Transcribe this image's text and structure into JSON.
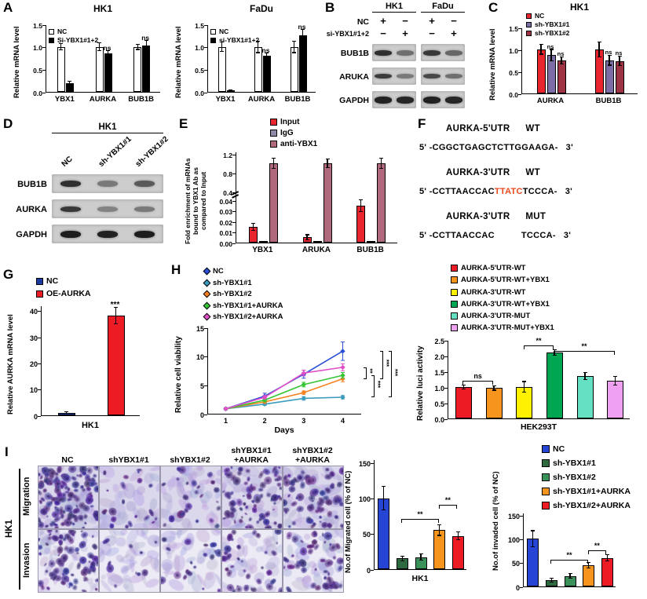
{
  "panel_labels": {
    "A": "A",
    "B": "B",
    "C": "C",
    "D": "D",
    "E": "E",
    "F": "F",
    "G": "G",
    "H": "H",
    "I": "I"
  },
  "charts": {
    "a1": {
      "type": "bar",
      "title": "HK1",
      "ylabel": "Relative mRNA level",
      "ylim": [
        0,
        1.5
      ],
      "yticks": [
        "0.0",
        "0.5",
        "1.0",
        "1.5"
      ],
      "ytick_vals": [
        0,
        0.5,
        1.0,
        1.5
      ],
      "categories": [
        "YBX1",
        "AURKA",
        "BUB1B"
      ],
      "series": [
        {
          "name": "NC",
          "color": "#ffffff",
          "values": [
            1.0,
            1.0,
            1.0
          ],
          "errors": [
            0.06,
            0.08,
            0.05
          ]
        },
        {
          "name": "Si-YBX1#1+2",
          "color": "#000000",
          "values": [
            0.2,
            0.85,
            1.03
          ],
          "errors": [
            0.02,
            0.06,
            0.1
          ]
        }
      ],
      "point_labels": [
        {
          "s": 1,
          "c": 1,
          "text": "ns"
        },
        {
          "s": 1,
          "c": 2,
          "text": "ns"
        }
      ]
    },
    "a2": {
      "type": "bar",
      "title": "FaDu",
      "ylabel": "Relative mRNA level",
      "ylim": [
        0,
        1.5
      ],
      "yticks": [
        "0.0",
        "0.5",
        "1.0",
        "1.5"
      ],
      "ytick_vals": [
        0,
        0.5,
        1.0,
        1.5
      ],
      "categories": [
        "YBX1",
        "AURKA",
        "BUB1B"
      ],
      "series": [
        {
          "name": "NC",
          "color": "#ffffff",
          "values": [
            1.0,
            1.0,
            1.0
          ],
          "errors": [
            0.1,
            0.12,
            0.12
          ]
        },
        {
          "name": "si-YBX1#1+2",
          "color": "#000000",
          "values": [
            0.03,
            0.8,
            1.25
          ],
          "errors": [
            0.01,
            0.05,
            0.12
          ]
        }
      ],
      "point_labels": [
        {
          "s": 1,
          "c": 1,
          "text": "ns"
        },
        {
          "s": 1,
          "c": 2,
          "text": "ns"
        }
      ]
    },
    "c": {
      "type": "bar",
      "title": "HK1",
      "ylabel": "Relative mRNA level",
      "ylim": [
        0,
        1.5
      ],
      "yticks": [
        "0.0",
        "0.5",
        "1.0",
        "1.5"
      ],
      "ytick_vals": [
        0,
        0.5,
        1.0,
        1.5
      ],
      "categories": [
        "AURKA",
        "BUB1B"
      ],
      "series": [
        {
          "name": "NC",
          "color": "#e8242c",
          "values": [
            1.0,
            1.0
          ],
          "errors": [
            0.1,
            0.16
          ]
        },
        {
          "name": "sh-YBX1#1",
          "color": "#7d6da6",
          "values": [
            0.87,
            0.75
          ],
          "errors": [
            0.12,
            0.1
          ]
        },
        {
          "name": "sh-YBX1#2",
          "color": "#9e3344",
          "values": [
            0.75,
            0.74
          ],
          "errors": [
            0.07,
            0.1
          ]
        }
      ],
      "point_labels": [
        {
          "s": 1,
          "c": 0,
          "text": "ns"
        },
        {
          "s": 2,
          "c": 0,
          "text": "ns"
        },
        {
          "s": 1,
          "c": 1,
          "text": "ns"
        },
        {
          "s": 2,
          "c": 1,
          "text": "ns"
        }
      ]
    },
    "e": {
      "type": "bar",
      "scale": "broken",
      "segments": [
        {
          "domain": [
            0,
            0.045
          ],
          "range": [
            0,
            0.52
          ]
        },
        {
          "domain": [
            0.4,
            1.25
          ],
          "range": [
            0.56,
            1.0
          ]
        }
      ],
      "ylabel": "Fold enrichment of mRNAs\nbound to YBX1 Ab as\ncompared to Input",
      "yticks": [
        "0.00",
        "0.01",
        "0.02",
        "0.03",
        "0.04",
        "0.4",
        "0.8",
        "1.2"
      ],
      "ytick_vals": [
        0,
        0.01,
        0.02,
        0.03,
        0.04,
        0.4,
        0.8,
        1.2
      ],
      "categories": [
        "YBX1",
        "ARUKA",
        "BUB1B"
      ],
      "series": [
        {
          "name": "Input",
          "color": "#e8242c",
          "values": [
            0.015,
            0.005,
            0.035
          ],
          "errors": [
            0.003,
            0.002,
            0.005
          ]
        },
        {
          "name": "IgG",
          "color": "#8f8aa8",
          "values": [
            0.0012,
            0.001,
            0.0012
          ],
          "errors": [
            0,
            0,
            0
          ]
        },
        {
          "name": "anti-YBX1",
          "color": "#b0687c",
          "values": [
            1.0,
            1.0,
            1.0
          ],
          "errors": [
            0.1,
            0.08,
            0.1
          ]
        }
      ]
    },
    "g": {
      "type": "bar",
      "ylabel": "Relative AURKA mRNA level",
      "xlabel": "HK1",
      "ylim": [
        0,
        42
      ],
      "yticks": [
        "0",
        "10",
        "20",
        "30",
        "40"
      ],
      "ytick_vals": [
        0,
        10,
        20,
        30,
        40
      ],
      "bars": [
        {
          "label": "NC",
          "value": 1,
          "error": 0.15,
          "color": "#1b3a9e"
        },
        {
          "label": "OE-AURKA",
          "value": 38,
          "error": 3,
          "color": "#ed1c24"
        }
      ],
      "legend": [
        {
          "label": "NC",
          "color": "#1b3a9e"
        },
        {
          "label": "OE-AURKA",
          "color": "#ed1c24"
        }
      ],
      "point_labels": [
        {
          "i": 1,
          "text": "***"
        }
      ]
    },
    "h": {
      "type": "line",
      "ylabel": "Relative cell viability",
      "xlabel": "Days",
      "ylim": [
        0,
        15
      ],
      "yticks": [
        "0",
        "5",
        "10",
        "15"
      ],
      "ytick_vals": [
        0,
        5,
        10,
        15
      ],
      "x": [
        "1",
        "2",
        "3",
        "4"
      ],
      "series": [
        {
          "name": "NC",
          "color": "#2a4fd6",
          "values": [
            1,
            3.2,
            7,
            11
          ],
          "errors": [
            0.2,
            0.5,
            0.7,
            1.6
          ]
        },
        {
          "name": "sh-YBX1#1",
          "color": "#3a9bbc",
          "values": [
            1,
            1.8,
            2.8,
            3.0
          ],
          "errors": [
            0.1,
            0.2,
            0.3,
            0.3
          ]
        },
        {
          "name": "sh-YBX1#2",
          "color": "#f5821f",
          "values": [
            1,
            2.2,
            3.8,
            6.2
          ],
          "errors": [
            0.1,
            0.2,
            0.3,
            0.5
          ]
        },
        {
          "name": "sh-YBX1#1+AURKA",
          "color": "#35c435",
          "values": [
            1,
            2.5,
            5.2,
            6.8
          ],
          "errors": [
            0.1,
            0.3,
            0.4,
            0.5
          ]
        },
        {
          "name": "sh-YBX1#2+AURKA",
          "color": "#e050c8",
          "values": [
            1,
            3.0,
            7.2,
            8.2
          ],
          "errors": [
            0.1,
            0.3,
            0.5,
            0.6
          ]
        }
      ],
      "brackets": [
        {
          "v1": 6.2,
          "v2": 8.2,
          "label": "**",
          "dx": 7
        },
        {
          "v1": 3.0,
          "v2": 6.8,
          "label": "***",
          "dx": 17
        },
        {
          "v1": 6.2,
          "v2": 11,
          "label": "***",
          "dx": 28
        },
        {
          "v1": 3.0,
          "v2": 11,
          "label": "***",
          "dx": 39
        }
      ]
    },
    "luc": {
      "type": "bar",
      "ylabel": "Relative luci activity",
      "xlabel": "HEK293T",
      "ylim": [
        0,
        2.5
      ],
      "yticks": [
        "0.0",
        "0.5",
        "1.0",
        "1.5",
        "2.0",
        "2.5"
      ],
      "ytick_vals": [
        0,
        0.5,
        1.0,
        1.5,
        2.0,
        2.5
      ],
      "bars": [
        {
          "label": "AURKA-5'UTR-WT",
          "value": 1.0,
          "error": 0.05,
          "color": "#ed1c24"
        },
        {
          "label": "AURKA-5'UTR-WT+YBX1",
          "value": 0.97,
          "error": 0.06,
          "color": "#f7941d"
        },
        {
          "label": "AURKA-3'UTR-WT",
          "value": 1.0,
          "error": 0.16,
          "color": "#fff200"
        },
        {
          "label": "AURKA-3'UTR-WT+YBX1",
          "value": 2.1,
          "error": 0.07,
          "color": "#00a651"
        },
        {
          "label": "AURKA-3'UTR-MUT",
          "value": 1.35,
          "error": 0.1,
          "color": "#66e0c2"
        },
        {
          "label": "AURKA-3'UTR-MUT+YBX1",
          "value": 1.2,
          "error": 0.13,
          "color": "#f0a0f0"
        }
      ],
      "legend": [
        {
          "label": "AURKA-5'UTR-WT",
          "color": "#ed1c24"
        },
        {
          "label": "AURKA-5'UTR-WT+YBX1",
          "color": "#f7941d"
        },
        {
          "label": "AURKA-3'UTR-WT",
          "color": "#fff200"
        },
        {
          "label": "AURKA-3'UTR-WT+YBX1",
          "color": "#00a651"
        },
        {
          "label": "AURKA-3'UTR-MUT",
          "color": "#66e0c2"
        },
        {
          "label": "AURKA-3'UTR-MUT+YBX1",
          "color": "#f0a0f0"
        }
      ],
      "brackets": [
        {
          "i": 0,
          "j": 1,
          "label": "ns",
          "v": 1.22
        },
        {
          "i": 2,
          "j": 3,
          "label": "**",
          "v": 2.36
        },
        {
          "i": 3,
          "j": 5,
          "label": "**",
          "v": 2.18
        }
      ]
    },
    "migrated": {
      "type": "bar",
      "ylabel": "No.of Migrated cell (% of NC)",
      "xlabel": "HK1",
      "ylim": [
        0,
        155
      ],
      "yticks": [
        "0",
        "50",
        "100",
        "150"
      ],
      "ytick_vals": [
        0,
        50,
        100,
        150
      ],
      "bars": [
        {
          "label": "NC",
          "value": 100,
          "error": 16,
          "color": "#2645d4"
        },
        {
          "label": "sh-YBX1#1",
          "value": 15,
          "error": 3,
          "color": "#2d6a3f"
        },
        {
          "label": "sh-YBX1#2",
          "value": 17,
          "error": 4,
          "color": "#3a915a"
        },
        {
          "label": "sh-YBX1#1+AURKA",
          "value": 55,
          "error": 7,
          "color": "#f7941d"
        },
        {
          "label": "sh-YBX1#2+AURKA",
          "value": 47,
          "error": 5,
          "color": "#ed1c24"
        }
      ],
      "brackets": [
        {
          "i": 1,
          "j": 3,
          "label": "**",
          "v": 72
        },
        {
          "i": 3,
          "j": 4,
          "label": "**",
          "v": 92
        }
      ]
    },
    "invaded": {
      "type": "bar",
      "ylabel": "No.of invaded cell (% of NC)",
      "ylim": [
        0,
        155
      ],
      "yticks": [
        "0",
        "50",
        "100",
        "150"
      ],
      "ytick_vals": [
        0,
        50,
        100,
        150
      ],
      "bars": [
        {
          "label": "NC",
          "value": 100,
          "error": 16,
          "color": "#2645d4"
        },
        {
          "label": "sh-YBX1#1",
          "value": 13,
          "error": 3,
          "color": "#2d6a3f"
        },
        {
          "label": "sh-YBX1#2",
          "value": 22,
          "error": 4,
          "color": "#3a915a"
        },
        {
          "label": "sh-YBX1#1+AURKA",
          "value": 44,
          "error": 5,
          "color": "#f7941d"
        },
        {
          "label": "sh-YBX1#2+AURKA",
          "value": 60,
          "error": 6,
          "color": "#ed1c24"
        }
      ],
      "brackets": [
        {
          "i": 1,
          "j": 3,
          "label": "**",
          "v": 58
        },
        {
          "i": 3,
          "j": 4,
          "label": "**",
          "v": 78
        }
      ]
    }
  },
  "panelB": {
    "groups": [
      "HK1",
      "FaDu"
    ],
    "condition_rows": [
      {
        "label": "NC",
        "signs": [
          "+",
          "−",
          "+",
          "−"
        ]
      },
      {
        "label": "si-YBX1#1+2",
        "signs": [
          "−",
          "+",
          "−",
          "+"
        ]
      }
    ],
    "blots": [
      {
        "label": "BUB1B",
        "lanes": [
          0.85,
          0.5,
          0.8,
          0.55
        ]
      },
      {
        "label": "ARUKA",
        "lanes": [
          0.78,
          0.45,
          0.72,
          0.5
        ]
      },
      {
        "label": "GAPDH",
        "lanes": [
          0.92,
          0.9,
          0.92,
          0.9
        ]
      }
    ]
  },
  "panelD": {
    "title": "HK1",
    "lanes": [
      "NC",
      "sh-YBX1#1",
      "sh-YBX1#2"
    ],
    "blots": [
      {
        "label": "BUB1B",
        "lanes": [
          0.85,
          0.45,
          0.62
        ]
      },
      {
        "label": "AURKA",
        "lanes": [
          0.8,
          0.4,
          0.45
        ]
      },
      {
        "label": "GAPDH",
        "lanes": [
          0.95,
          0.93,
          0.95
        ]
      }
    ]
  },
  "panelF": {
    "prime5": "5'",
    "prime3": "3'",
    "dash": "-",
    "highlight_color": "#e8491d",
    "blocks": [
      {
        "name": "AURKA-5'UTR",
        "variant": "WT",
        "pre": "CGGCTGAGCTCTTGGAAGA",
        "highlight": "",
        "post": "",
        "gap": false
      },
      {
        "name": "AURKA-3'UTR",
        "variant": "WT",
        "pre": "CCTTAACCAC",
        "highlight": "TTATC",
        "post": "TCCCA",
        "gap": false
      },
      {
        "name": "AURKA-3'UTR",
        "variant": "MUT",
        "pre": "CCTTAACCAC",
        "highlight": "",
        "post": "TCCCA",
        "gap": true
      }
    ]
  },
  "panelI": {
    "col_headers": [
      [
        "NC",
        ""
      ],
      [
        "shYBX1#1",
        ""
      ],
      [
        "shYBX1#2",
        ""
      ],
      [
        "shYBX1#1",
        "+AURKA"
      ],
      [
        "shYBX1#2",
        "+AURKA"
      ]
    ],
    "row_labels": [
      "Migration",
      "Invasion"
    ],
    "group_label": "HK1",
    "legend": [
      {
        "label": "NC",
        "color": "#2645d4"
      },
      {
        "label": "sh-YBX1#1",
        "color": "#2d6a3f"
      },
      {
        "label": "sh-YBX1#2",
        "color": "#3a915a"
      },
      {
        "label": "sh-YBX1#1+AURKA",
        "color": "#f7941d"
      },
      {
        "label": "sh-YBX1#2+AURKA",
        "color": "#ed1c24"
      }
    ]
  }
}
